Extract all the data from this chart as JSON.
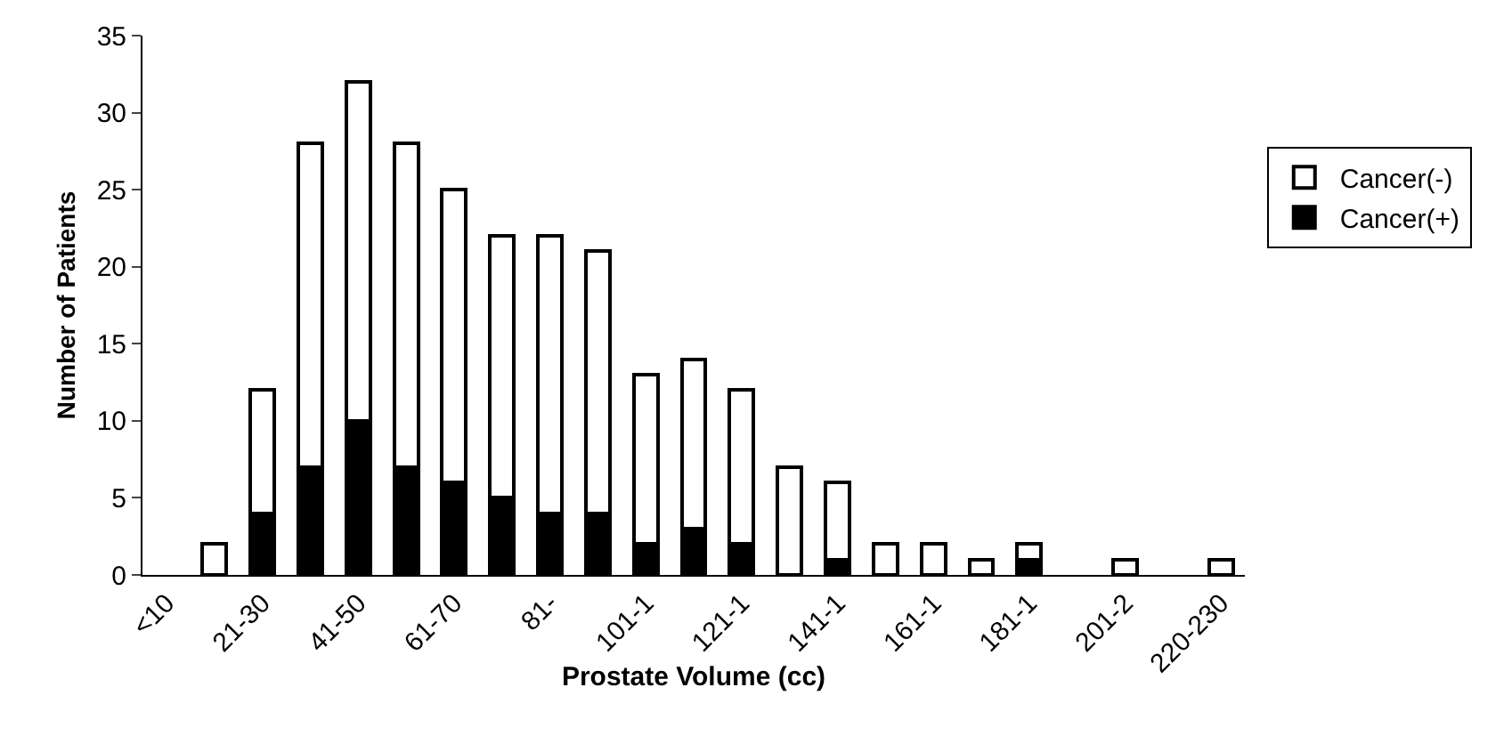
{
  "chart_data": {
    "type": "bar",
    "stacked": true,
    "xlabel": "Prostate Volume (cc)",
    "ylabel": "Number of Patients",
    "categories": [
      "<10",
      null,
      "21-30",
      null,
      "41-50",
      null,
      "61-70",
      null,
      "81-",
      null,
      "101-1",
      null,
      "121-1",
      null,
      "141-1",
      null,
      "161-1",
      null,
      "181-1",
      null,
      "201-2",
      null,
      "220-230"
    ],
    "series": [
      {
        "name": "Cancer(+)",
        "color": "#000000",
        "values": [
          0,
          0,
          4,
          7,
          10,
          7,
          6,
          5,
          4,
          4,
          2,
          3,
          2,
          0,
          1,
          0,
          0,
          0,
          1,
          0,
          0,
          0,
          0
        ]
      },
      {
        "name": "Cancer(-)",
        "color": "#ffffff",
        "values": [
          0,
          2,
          8,
          21,
          22,
          21,
          19,
          17,
          18,
          17,
          11,
          11,
          10,
          7,
          5,
          2,
          2,
          1,
          1,
          0,
          1,
          0,
          1
        ]
      }
    ],
    "ylim": [
      0,
      35
    ],
    "yticks": [
      0,
      5,
      10,
      15,
      20,
      25,
      30,
      35
    ],
    "grid": false,
    "legend": "right"
  }
}
